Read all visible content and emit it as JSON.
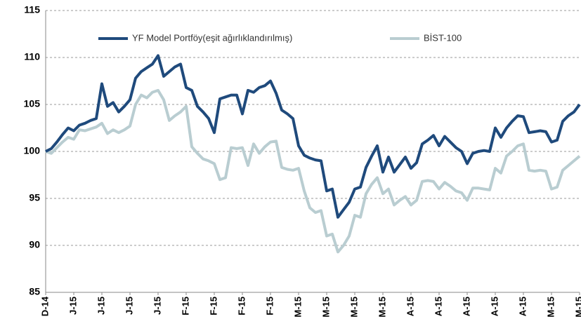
{
  "chart_data": {
    "type": "line",
    "categories": [
      "D-14",
      null,
      null,
      null,
      null,
      "J-15",
      null,
      null,
      null,
      null,
      "J-15",
      null,
      null,
      null,
      null,
      "J-15",
      null,
      null,
      null,
      null,
      "J-15",
      null,
      null,
      null,
      null,
      "F-15",
      null,
      null,
      null,
      null,
      "F-15",
      null,
      null,
      null,
      null,
      "F-15",
      null,
      null,
      null,
      null,
      "F-15",
      null,
      null,
      null,
      null,
      "M-15",
      null,
      null,
      null,
      null,
      "M-15",
      null,
      null,
      null,
      null,
      "M-15",
      null,
      null,
      null,
      null,
      "M-15",
      null,
      null,
      null,
      null,
      "A-15",
      null,
      null,
      null,
      null,
      "A-15",
      null,
      null,
      null,
      null,
      "A-15",
      null,
      null,
      null,
      null,
      "A-15",
      null,
      null,
      null,
      null,
      "A-15",
      null,
      null,
      null,
      null,
      "M-15",
      null,
      null,
      null,
      null,
      "M-15"
    ],
    "series": [
      {
        "name": "YF Model Portföy(eşit ağırlıklandırılmış)",
        "color": "#1f4a7c",
        "values": [
          100.0,
          100.3,
          101.0,
          101.8,
          102.5,
          102.2,
          102.8,
          103.0,
          103.3,
          103.5,
          107.2,
          104.8,
          105.2,
          104.2,
          104.8,
          105.5,
          107.8,
          108.5,
          108.9,
          109.3,
          110.2,
          108.0,
          108.5,
          109.0,
          109.3,
          106.8,
          106.5,
          104.8,
          104.2,
          103.5,
          102.0,
          105.6,
          105.8,
          106.0,
          106.0,
          104.0,
          106.5,
          106.3,
          106.8,
          107.0,
          107.5,
          106.2,
          104.4,
          104.0,
          103.5,
          100.6,
          99.6,
          99.3,
          99.1,
          99.0,
          95.8,
          96.0,
          93.0,
          93.8,
          94.6,
          96.0,
          96.2,
          98.3,
          99.5,
          100.6,
          97.8,
          99.4,
          97.8,
          98.6,
          99.4,
          98.2,
          98.8,
          100.8,
          101.2,
          101.7,
          100.6,
          101.6,
          101.0,
          100.4,
          100.0,
          98.7,
          99.8,
          100.0,
          100.1,
          100.0,
          102.5,
          101.5,
          102.5,
          103.2,
          103.8,
          103.7,
          102.0,
          102.1,
          102.2,
          102.1,
          101.0,
          101.2,
          103.2,
          103.8,
          104.2,
          105.0
        ]
      },
      {
        "name": "BİST-100",
        "color": "#b9cdd1",
        "values": [
          100.0,
          99.8,
          100.4,
          101.0,
          101.5,
          101.3,
          102.3,
          102.2,
          102.4,
          102.6,
          103.0,
          101.9,
          102.3,
          102.0,
          102.3,
          102.7,
          105.0,
          106.0,
          105.7,
          106.3,
          106.5,
          105.5,
          103.3,
          103.8,
          104.2,
          104.8,
          100.5,
          99.8,
          99.2,
          99.0,
          98.7,
          97.0,
          97.2,
          100.4,
          100.3,
          100.4,
          98.5,
          100.8,
          99.8,
          100.5,
          101.0,
          101.1,
          98.3,
          98.1,
          98.0,
          98.2,
          95.8,
          94.0,
          93.5,
          93.7,
          91.0,
          91.2,
          89.3,
          90.0,
          91.0,
          93.2,
          93.0,
          95.5,
          96.5,
          97.2,
          95.5,
          96.0,
          94.3,
          94.8,
          95.2,
          94.3,
          94.8,
          96.8,
          96.9,
          96.8,
          96.0,
          96.7,
          96.3,
          95.8,
          95.6,
          94.8,
          96.1,
          96.1,
          96.0,
          95.9,
          98.2,
          97.7,
          99.5,
          100.0,
          100.6,
          100.8,
          98.0,
          97.9,
          98.0,
          97.9,
          96.0,
          96.2,
          98.0,
          98.5,
          99.0,
          99.5
        ]
      }
    ],
    "ylim": [
      85,
      115
    ],
    "yticks": [
      85,
      90,
      95,
      100,
      105,
      110,
      115
    ],
    "grid": true
  }
}
